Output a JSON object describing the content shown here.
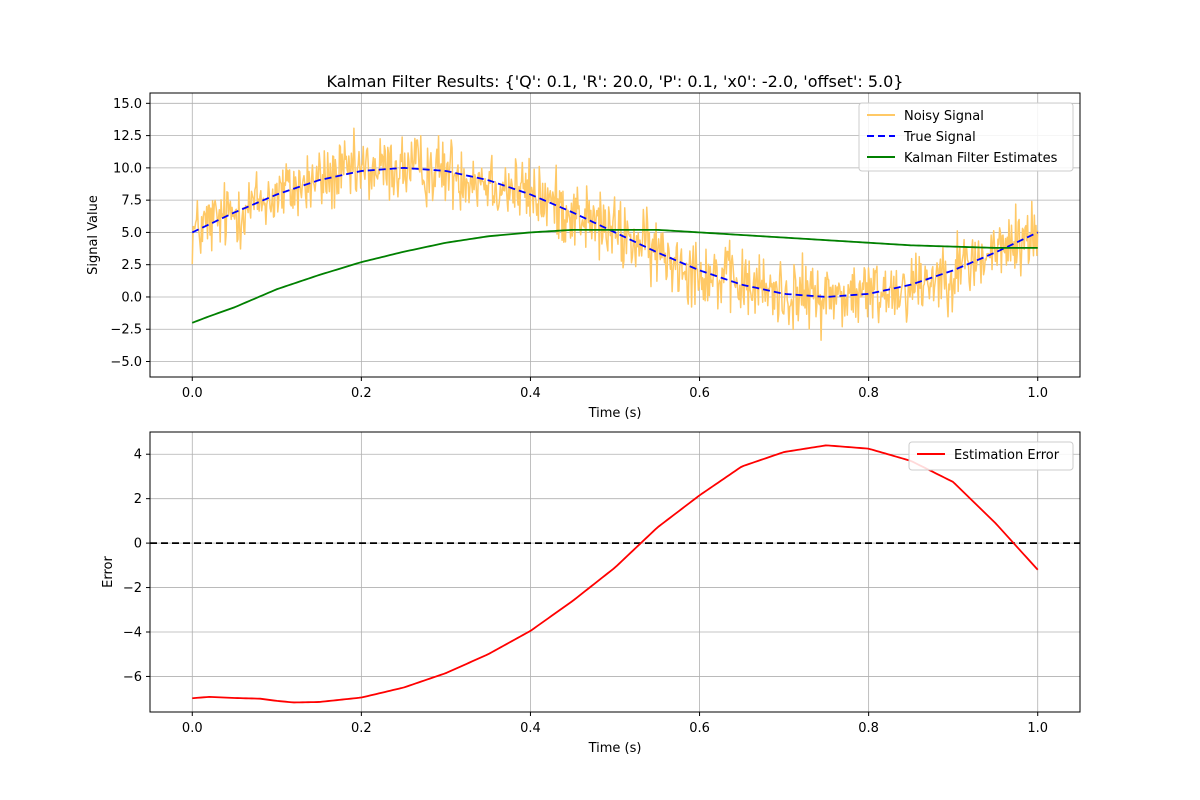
{
  "chart_data": [
    {
      "type": "line",
      "title": "Kalman Filter Results: {'Q': 0.1, 'R': 20.0, 'P': 0.1, 'x0': -2.0, 'offset': 5.0}",
      "xlabel": "Time (s)",
      "ylabel": "Signal Value",
      "xlim": [
        -0.05,
        1.05
      ],
      "ylim": [
        -6.2,
        15.8
      ],
      "xticks": [
        0.0,
        0.2,
        0.4,
        0.6,
        0.8,
        1.0
      ],
      "xtick_labels": [
        "0.0",
        "0.2",
        "0.4",
        "0.6",
        "0.8",
        "1.0"
      ],
      "yticks": [
        -5.0,
        -2.5,
        0.0,
        2.5,
        5.0,
        7.5,
        10.0,
        12.5,
        15.0
      ],
      "ytick_labels": [
        "−5.0",
        "−2.5",
        "0.0",
        "2.5",
        "5.0",
        "7.5",
        "10.0",
        "12.5",
        "15.0"
      ],
      "grid": true,
      "legend_position": "top-right",
      "series": [
        {
          "name": "Noisy Signal",
          "color": "#ffc966",
          "style": "solid",
          "noise_amplitude": 2.5,
          "x": [
            0.0,
            0.05,
            0.1,
            0.15,
            0.2,
            0.25,
            0.3,
            0.35,
            0.4,
            0.45,
            0.5,
            0.55,
            0.6,
            0.65,
            0.7,
            0.75,
            0.8,
            0.85,
            0.9,
            0.95,
            1.0
          ],
          "y": [
            5.0,
            6.55,
            7.94,
            9.05,
            9.76,
            10.0,
            9.76,
            9.05,
            7.94,
            6.55,
            5.0,
            3.45,
            2.06,
            0.95,
            0.24,
            0.0,
            0.24,
            0.95,
            2.06,
            3.45,
            5.0
          ]
        },
        {
          "name": "True Signal",
          "color": "#0000ff",
          "style": "dashed",
          "x": [
            0.0,
            0.05,
            0.1,
            0.15,
            0.2,
            0.25,
            0.3,
            0.35,
            0.4,
            0.45,
            0.5,
            0.55,
            0.6,
            0.65,
            0.7,
            0.75,
            0.8,
            0.85,
            0.9,
            0.95,
            1.0
          ],
          "y": [
            5.0,
            6.55,
            7.94,
            9.05,
            9.76,
            10.0,
            9.76,
            9.05,
            7.94,
            6.55,
            5.0,
            3.45,
            2.06,
            0.95,
            0.24,
            0.0,
            0.24,
            0.95,
            2.06,
            3.45,
            5.0
          ]
        },
        {
          "name": "Kalman Filter Estimates",
          "color": "#008000",
          "style": "solid",
          "x": [
            0.0,
            0.02,
            0.05,
            0.1,
            0.15,
            0.2,
            0.25,
            0.3,
            0.35,
            0.4,
            0.45,
            0.5,
            0.55,
            0.6,
            0.65,
            0.7,
            0.75,
            0.8,
            0.85,
            0.9,
            0.95,
            1.0
          ],
          "y": [
            -2.0,
            -1.5,
            -0.8,
            0.6,
            1.7,
            2.7,
            3.5,
            4.2,
            4.7,
            5.0,
            5.2,
            5.2,
            5.2,
            5.0,
            4.8,
            4.6,
            4.4,
            4.2,
            4.0,
            3.9,
            3.8,
            3.8
          ]
        }
      ]
    },
    {
      "type": "line",
      "title": "",
      "xlabel": "Time (s)",
      "ylabel": "Error",
      "xlim": [
        -0.05,
        1.05
      ],
      "ylim": [
        -7.6,
        5.0
      ],
      "xticks": [
        0.0,
        0.2,
        0.4,
        0.6,
        0.8,
        1.0
      ],
      "xtick_labels": [
        "0.0",
        "0.2",
        "0.4",
        "0.6",
        "0.8",
        "1.0"
      ],
      "yticks": [
        -6,
        -4,
        -2,
        0,
        2,
        4
      ],
      "ytick_labels": [
        "−6",
        "−4",
        "−2",
        "0",
        "2",
        "4"
      ],
      "grid": true,
      "legend_position": "top-right",
      "reference_line": {
        "y": 0,
        "color": "#000000",
        "style": "dashed"
      },
      "series": [
        {
          "name": "Estimation Error",
          "color": "#ff0000",
          "style": "solid",
          "x": [
            0.0,
            0.02,
            0.05,
            0.08,
            0.1,
            0.12,
            0.15,
            0.2,
            0.25,
            0.3,
            0.35,
            0.4,
            0.45,
            0.5,
            0.55,
            0.6,
            0.65,
            0.7,
            0.75,
            0.8,
            0.85,
            0.9,
            0.95,
            1.0
          ],
          "y": [
            -6.98,
            -6.92,
            -6.97,
            -7.0,
            -7.1,
            -7.17,
            -7.15,
            -6.95,
            -6.5,
            -5.85,
            -5.0,
            -3.95,
            -2.6,
            -1.1,
            0.7,
            2.15,
            3.45,
            4.1,
            4.4,
            4.25,
            3.7,
            2.75,
            0.9,
            -1.2
          ]
        }
      ]
    }
  ]
}
